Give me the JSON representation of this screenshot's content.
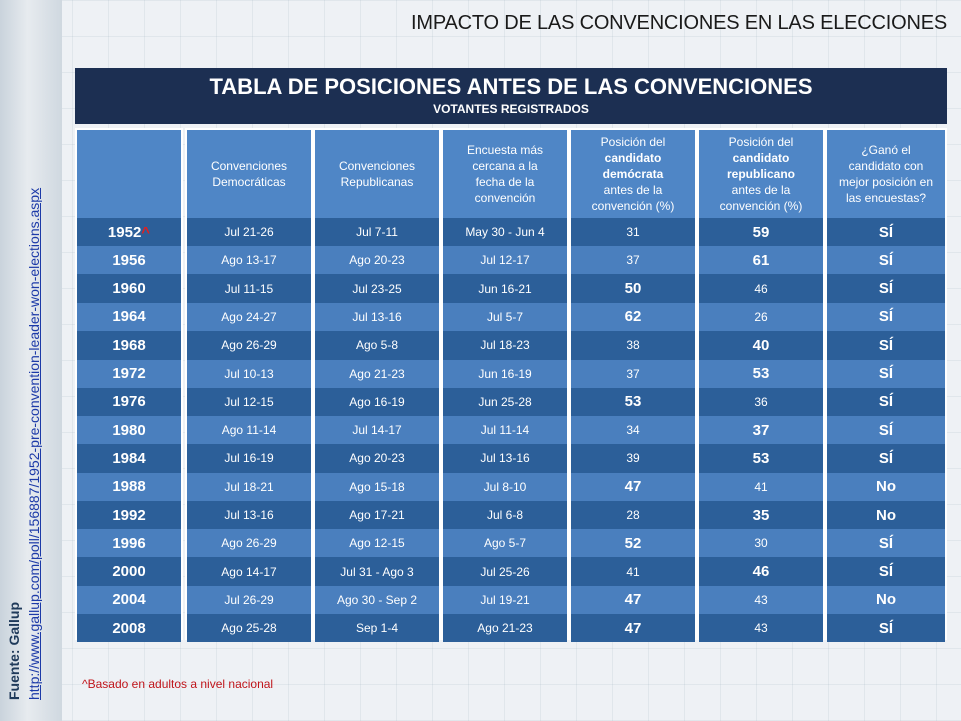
{
  "slide_title": "IMPACTO DE LAS CONVENCIONES EN LAS ELECCIONES",
  "table_title": "TABLA DE POSICIONES ANTES DE LAS CONVENCIONES",
  "table_subtitle": "VOTANTES REGISTRADOS",
  "source_label": "Fuente: Gallup",
  "source_url": "http://www.gallup.com/poll/156887/1952-pre-convention-leader-won-elections.aspx",
  "footnote": "^Basado en adultos a nivel nacional",
  "headers": {
    "dem_conv": "Convenciones Democráticas",
    "rep_conv": "Convenciones Republicanas",
    "poll": "Encuesta más cercana a la fecha de la convención",
    "dem_pos_pre": "Posición del",
    "dem_pos_bold": "candidato demócrata",
    "dem_pos_post": "antes de la convención (%)",
    "rep_pos_pre": "Posición del",
    "rep_pos_bold": "candidato republicano",
    "rep_pos_post": "antes de la convención (%)",
    "won": "¿Ganó el candidato con mejor posición en las encuestas?"
  },
  "colors": {
    "header_band": "#1c2f52",
    "header_cell": "#4f86c6",
    "row_dark": "#2c5f99",
    "row_light": "#4a7fbe",
    "highlight": "#c0151b"
  },
  "rows": [
    {
      "year": "1952",
      "caret": "^",
      "dem": "Jul 21-26",
      "rep": "Jul 7-11",
      "poll": "May 30 - Jun 4",
      "d": "31",
      "r": "59",
      "won": "SÍ"
    },
    {
      "year": "1956",
      "caret": "",
      "dem": "Ago 13-17",
      "rep": "Ago 20-23",
      "poll": "Jul 12-17",
      "d": "37",
      "r": "61",
      "won": "SÍ"
    },
    {
      "year": "1960",
      "caret": "",
      "dem": "Jul 11-15",
      "rep": "Jul 23-25",
      "poll": "Jun 16-21",
      "d": "50",
      "r": "46",
      "won": "SÍ"
    },
    {
      "year": "1964",
      "caret": "",
      "dem": "Ago 24-27",
      "rep": "Jul 13-16",
      "poll": "Jul 5-7",
      "d": "62",
      "r": "26",
      "won": "SÍ"
    },
    {
      "year": "1968",
      "caret": "",
      "dem": "Ago 26-29",
      "rep": "Ago 5-8",
      "poll": "Jul 18-23",
      "d": "38",
      "r": "40",
      "won": "SÍ"
    },
    {
      "year": "1972",
      "caret": "",
      "dem": "Jul 10-13",
      "rep": "Ago 21-23",
      "poll": "Jun 16-19",
      "d": "37",
      "r": "53",
      "won": "SÍ"
    },
    {
      "year": "1976",
      "caret": "",
      "dem": "Jul 12-15",
      "rep": "Ago 16-19",
      "poll": "Jun 25-28",
      "d": "53",
      "r": "36",
      "won": "SÍ"
    },
    {
      "year": "1980",
      "caret": "",
      "dem": "Ago 11-14",
      "rep": "Jul 14-17",
      "poll": "Jul 11-14",
      "d": "34",
      "r": "37",
      "won": "SÍ"
    },
    {
      "year": "1984",
      "caret": "",
      "dem": "Jul 16-19",
      "rep": "Ago 20-23",
      "poll": "Jul 13-16",
      "d": "39",
      "r": "53",
      "won": "SÍ"
    },
    {
      "year": "1988",
      "caret": "",
      "dem": "Jul 18-21",
      "rep": "Ago 15-18",
      "poll": "Jul 8-10",
      "d": "47",
      "r": "41",
      "won": "No"
    },
    {
      "year": "1992",
      "caret": "",
      "dem": "Jul 13-16",
      "rep": "Ago 17-21",
      "poll": "Jul 6-8",
      "d": "28",
      "r": "35",
      "won": "No"
    },
    {
      "year": "1996",
      "caret": "",
      "dem": "Ago 26-29",
      "rep": "Ago 12-15",
      "poll": "Ago 5-7",
      "d": "52",
      "r": "30",
      "won": "SÍ"
    },
    {
      "year": "2000",
      "caret": "",
      "dem": "Ago 14-17",
      "rep": "Jul 31 - Ago 3",
      "poll": "Jul 25-26",
      "d": "41",
      "r": "46",
      "won": "SÍ"
    },
    {
      "year": "2004",
      "caret": "",
      "dem": "Jul 26-29",
      "rep": "Ago 30 - Sep 2",
      "poll": "Jul 19-21",
      "d": "47",
      "r": "43",
      "won": "No"
    },
    {
      "year": "2008",
      "caret": "",
      "dem": "Ago 25-28",
      "rep": "Sep 1-4",
      "poll": "Ago 21-23",
      "d": "47",
      "r": "43",
      "won": "SÍ"
    }
  ]
}
